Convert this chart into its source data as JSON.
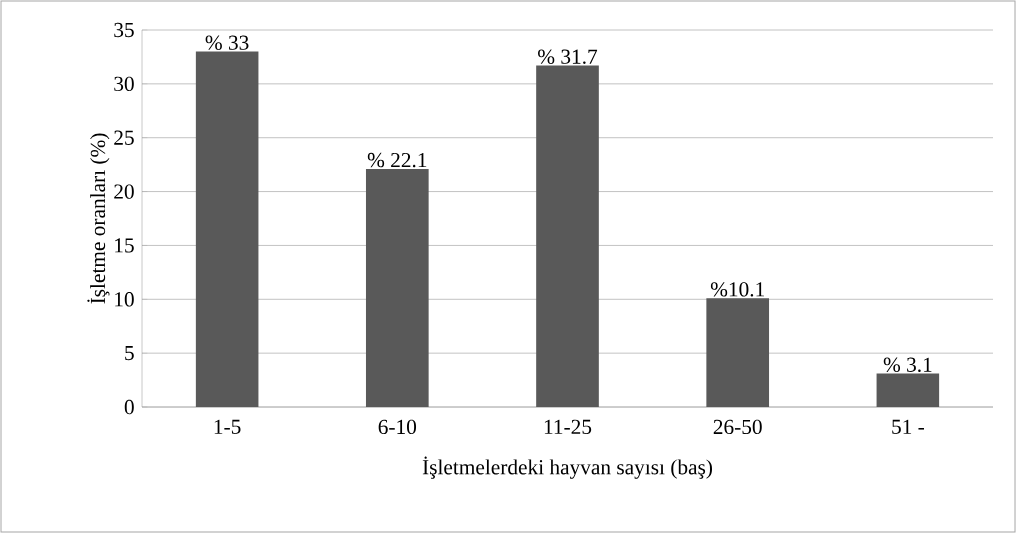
{
  "chart_data": {
    "type": "bar",
    "xlabel": "İşletmelerdeki hayvan sayısı (baş)",
    "ylabel": "İşletme oranları (%)",
    "categories": [
      "1-5",
      "6-10",
      "11-25",
      "26-50",
      "51   -"
    ],
    "values": [
      33,
      22.1,
      31.7,
      10.1,
      3.1
    ],
    "value_labels": [
      "% 33",
      "% 22.1",
      "% 31.7",
      "%10.1",
      "% 3.1"
    ],
    "color": "#595959",
    "ylim": [
      0,
      35
    ],
    "yticks": [
      0,
      5,
      10,
      15,
      20,
      25,
      30,
      35
    ],
    "grid": "y"
  }
}
